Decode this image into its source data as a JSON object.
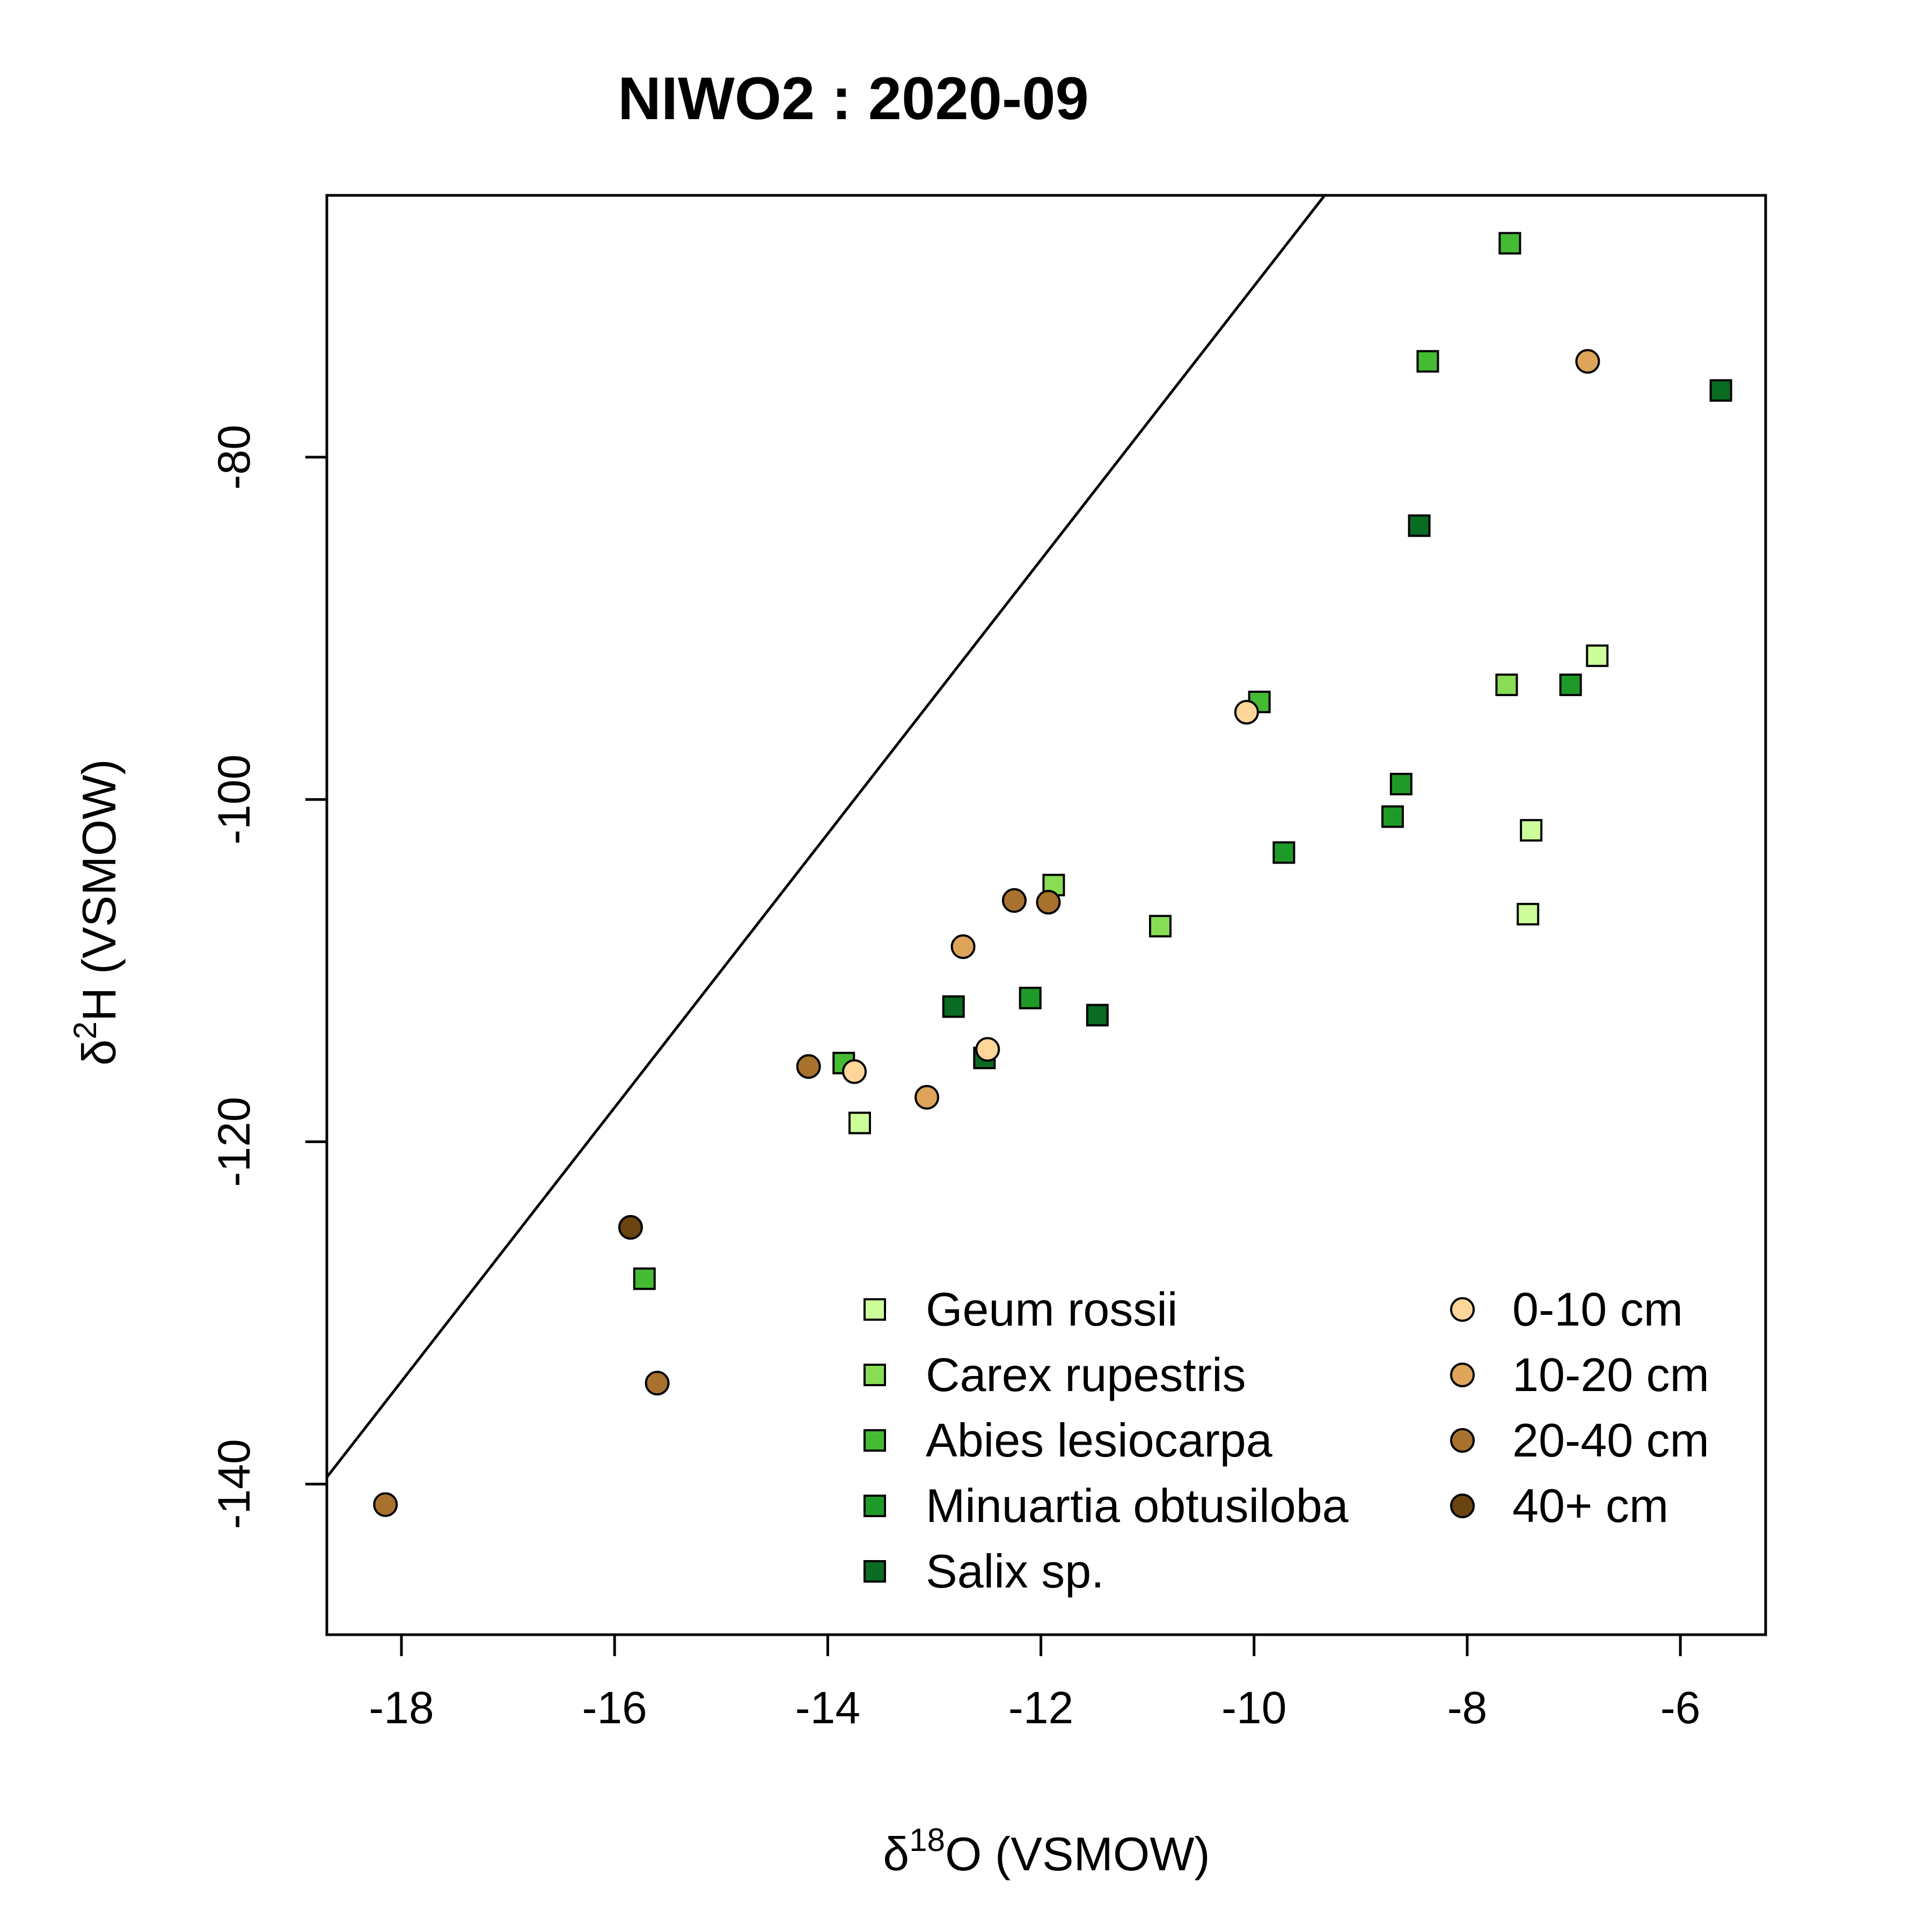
{
  "chart_data": {
    "type": "scatter",
    "title": "NIWO2 : 2020-09",
    "xlabel": {
      "symbol": "δ",
      "sup": "18",
      "rest": "O (VSMOW)"
    },
    "ylabel": {
      "symbol": "δ",
      "sup": "2",
      "rest": "H (VSMOW)"
    },
    "xlim": [
      -18.7,
      -5.2
    ],
    "ylim": [
      -148.8,
      -64.7
    ],
    "xticks": [
      -18,
      -16,
      -14,
      -12,
      -10,
      -8,
      -6
    ],
    "yticks": [
      -80,
      -100,
      -120,
      -140
    ],
    "xtick_labels": [
      "-18",
      "-16",
      "-14",
      "-12",
      "-10",
      "-8",
      "-6"
    ],
    "ytick_labels": [
      "-80",
      "-100",
      "-120",
      "-140"
    ],
    "reference_line": {
      "slope": 8,
      "intercept": 10
    },
    "legend_position": "bottom-right",
    "series": [
      {
        "name": "Geum rossii",
        "marker": "square",
        "color": "#CCFF99",
        "points": [
          [
            -6.78,
            -91.6
          ],
          [
            -7.4,
            -101.8
          ],
          [
            -7.43,
            -106.7
          ],
          [
            -13.7,
            -118.9
          ]
        ]
      },
      {
        "name": "Carex rupestris",
        "marker": "square",
        "color": "#88DD55",
        "points": [
          [
            -7.63,
            -93.3
          ],
          [
            -11.88,
            -105.0
          ],
          [
            -10.88,
            -107.4
          ]
        ]
      },
      {
        "name": "Abies lesiocarpa",
        "marker": "square",
        "color": "#44BB33",
        "points": [
          [
            -7.6,
            -67.5
          ],
          [
            -8.37,
            -74.4
          ],
          [
            -9.95,
            -94.3
          ],
          [
            -13.85,
            -115.4
          ],
          [
            -15.72,
            -128.0
          ]
        ]
      },
      {
        "name": "Minuartia obtusiloba",
        "marker": "square",
        "color": "#1E9A28",
        "points": [
          [
            -7.03,
            -93.3
          ],
          [
            -8.62,
            -99.1
          ],
          [
            -8.7,
            -101.0
          ],
          [
            -9.72,
            -103.1
          ],
          [
            -12.1,
            -111.6
          ]
        ]
      },
      {
        "name": "Salix sp.",
        "marker": "square",
        "color": "#0A6B22",
        "points": [
          [
            -5.62,
            -76.1
          ],
          [
            -8.45,
            -84.0
          ],
          [
            -12.82,
            -112.1
          ],
          [
            -11.47,
            -112.6
          ],
          [
            -12.53,
            -115.1
          ]
        ]
      },
      {
        "name": "0-10 cm",
        "marker": "circle",
        "color": "#FFD699",
        "points": [
          [
            -10.07,
            -94.9
          ],
          [
            -13.75,
            -115.9
          ],
          [
            -12.5,
            -114.6
          ]
        ]
      },
      {
        "name": "10-20 cm",
        "marker": "circle",
        "color": "#DDA45A",
        "points": [
          [
            -6.87,
            -74.4
          ],
          [
            -12.73,
            -108.6
          ],
          [
            -13.07,
            -117.4
          ]
        ]
      },
      {
        "name": "20-40 cm",
        "marker": "circle",
        "color": "#A8722E",
        "points": [
          [
            -12.25,
            -105.9
          ],
          [
            -11.93,
            -106.0
          ],
          [
            -14.18,
            -115.6
          ],
          [
            -15.6,
            -134.1
          ],
          [
            -18.15,
            -141.2
          ]
        ]
      },
      {
        "name": "40+ cm",
        "marker": "circle",
        "color": "#6A4410",
        "points": [
          [
            -15.85,
            -125.0
          ]
        ]
      }
    ]
  }
}
